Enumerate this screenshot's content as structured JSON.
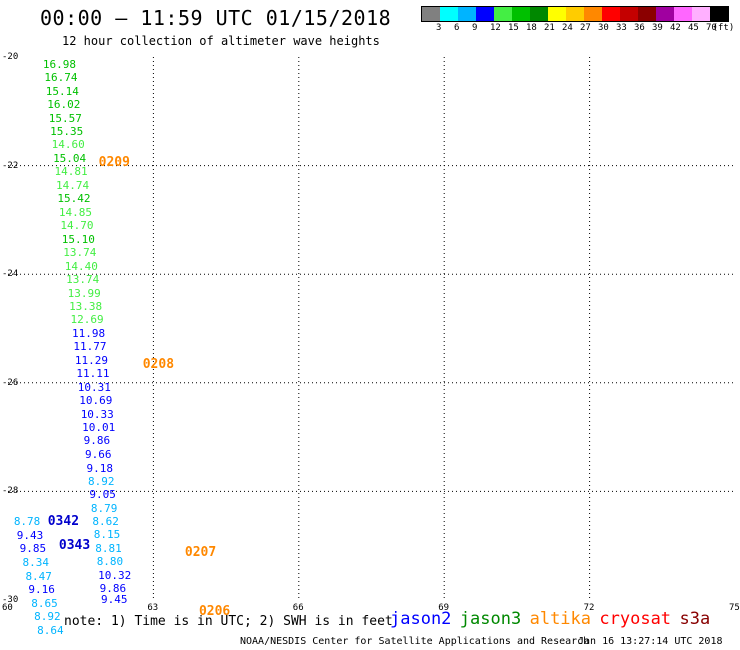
{
  "header": {
    "title": "00:00 – 11:59 UTC 01/15/2018",
    "subtitle": "12 hour collection of altimeter wave heights"
  },
  "legend": {
    "colors": [
      "#808080",
      "#00ffff",
      "#00b4ff",
      "#0000ff",
      "#44ee44",
      "#00c000",
      "#008800",
      "#ffff00",
      "#ffcc00",
      "#ff8800",
      "#ff0000",
      "#c40000",
      "#8b0000",
      "#a000a0",
      "#ff66ff",
      "#ffb0ff",
      "#000000"
    ],
    "labels": [
      "3",
      "6",
      "9",
      "12",
      "15",
      "18",
      "21",
      "24",
      "27",
      "30",
      "33",
      "36",
      "39",
      "42",
      "45",
      "70",
      "(ft)"
    ]
  },
  "axes": {
    "x_ticks": [
      "60",
      "63",
      "66",
      "69",
      "72",
      "75"
    ],
    "y_ticks": [
      "-20",
      "-22",
      "-24",
      "-26",
      "-28",
      "-30"
    ]
  },
  "map_data": {
    "lon_range": [
      60,
      75
    ],
    "lat_range": [
      -30,
      -20
    ],
    "points": [
      {
        "lon": 60.72,
        "lat": -20.13,
        "v": "16.98",
        "c": "#00c000"
      },
      {
        "lon": 60.75,
        "lat": -20.37,
        "v": "16.74",
        "c": "#00c000"
      },
      {
        "lon": 60.78,
        "lat": -20.62,
        "v": "15.14",
        "c": "#00c000"
      },
      {
        "lon": 60.81,
        "lat": -20.87,
        "v": "16.02",
        "c": "#00c000"
      },
      {
        "lon": 60.84,
        "lat": -21.12,
        "v": "15.57",
        "c": "#00c000"
      },
      {
        "lon": 60.87,
        "lat": -21.36,
        "v": "15.35",
        "c": "#00c000"
      },
      {
        "lon": 60.9,
        "lat": -21.61,
        "v": "14.60",
        "c": "#44ee44"
      },
      {
        "lon": 60.93,
        "lat": -21.86,
        "v": "15.04",
        "c": "#00c000"
      },
      {
        "lon": 60.96,
        "lat": -22.1,
        "v": "14.81",
        "c": "#44ee44"
      },
      {
        "lon": 60.99,
        "lat": -22.36,
        "v": "14.74",
        "c": "#44ee44"
      },
      {
        "lon": 61.02,
        "lat": -22.6,
        "v": "15.42",
        "c": "#00c000"
      },
      {
        "lon": 61.05,
        "lat": -22.86,
        "v": "14.85",
        "c": "#44ee44"
      },
      {
        "lon": 61.08,
        "lat": -23.1,
        "v": "14.70",
        "c": "#44ee44"
      },
      {
        "lon": 61.11,
        "lat": -23.35,
        "v": "15.10",
        "c": "#00c000"
      },
      {
        "lon": 61.14,
        "lat": -23.59,
        "v": "13.74",
        "c": "#44ee44"
      },
      {
        "lon": 61.17,
        "lat": -23.84,
        "v": "14.40",
        "c": "#44ee44"
      },
      {
        "lon": 61.2,
        "lat": -24.09,
        "v": "13.74",
        "c": "#44ee44"
      },
      {
        "lon": 61.23,
        "lat": -24.34,
        "v": "13.99",
        "c": "#44ee44"
      },
      {
        "lon": 61.26,
        "lat": -24.58,
        "v": "13.38",
        "c": "#44ee44"
      },
      {
        "lon": 61.29,
        "lat": -24.83,
        "v": "12.69",
        "c": "#44ee44"
      },
      {
        "lon": 61.32,
        "lat": -25.08,
        "v": "11.98",
        "c": "#0000ff"
      },
      {
        "lon": 61.35,
        "lat": -25.32,
        "v": "11.77",
        "c": "#0000ff"
      },
      {
        "lon": 61.38,
        "lat": -25.58,
        "v": "11.29",
        "c": "#0000ff"
      },
      {
        "lon": 61.41,
        "lat": -25.82,
        "v": "11.11",
        "c": "#0000ff"
      },
      {
        "lon": 61.44,
        "lat": -26.07,
        "v": "10.31",
        "c": "#0000ff"
      },
      {
        "lon": 61.47,
        "lat": -26.32,
        "v": "10.69",
        "c": "#0000ff"
      },
      {
        "lon": 61.5,
        "lat": -26.57,
        "v": "10.33",
        "c": "#0000ff"
      },
      {
        "lon": 61.53,
        "lat": -26.81,
        "v": "10.01",
        "c": "#0000ff"
      },
      {
        "lon": 61.56,
        "lat": -27.06,
        "v": "9.86",
        "c": "#0000ff"
      },
      {
        "lon": 61.59,
        "lat": -27.31,
        "v": "9.66",
        "c": "#0000ff"
      },
      {
        "lon": 61.62,
        "lat": -27.56,
        "v": "9.18",
        "c": "#0000ff"
      },
      {
        "lon": 61.65,
        "lat": -27.8,
        "v": "8.92",
        "c": "#00b4ff"
      },
      {
        "lon": 61.68,
        "lat": -28.05,
        "v": "9.05",
        "c": "#0000ff"
      },
      {
        "lon": 61.71,
        "lat": -28.3,
        "v": "8.79",
        "c": "#00b4ff"
      },
      {
        "lon": 61.74,
        "lat": -28.55,
        "v": "8.62",
        "c": "#00b4ff"
      },
      {
        "lon": 61.77,
        "lat": -28.79,
        "v": "8.15",
        "c": "#00b4ff"
      },
      {
        "lon": 61.8,
        "lat": -29.04,
        "v": "8.81",
        "c": "#00b4ff"
      },
      {
        "lon": 61.83,
        "lat": -29.29,
        "v": "8.80",
        "c": "#00b4ff"
      },
      {
        "lon": 61.86,
        "lat": -29.54,
        "v": "10.32",
        "c": "#0000ff"
      },
      {
        "lon": 61.89,
        "lat": -29.78,
        "v": "9.86",
        "c": "#0000ff"
      },
      {
        "lon": 61.92,
        "lat": -29.98,
        "v": "9.45",
        "c": "#0000ff"
      },
      {
        "lon": 60.12,
        "lat": -28.55,
        "v": "8.78",
        "c": "#00b4ff"
      },
      {
        "lon": 60.18,
        "lat": -28.8,
        "v": "9.43",
        "c": "#0000ff"
      },
      {
        "lon": 60.24,
        "lat": -29.05,
        "v": "9.85",
        "c": "#0000ff"
      },
      {
        "lon": 60.3,
        "lat": -29.3,
        "v": "8.34",
        "c": "#00b4ff"
      },
      {
        "lon": 60.36,
        "lat": -29.55,
        "v": "8.47",
        "c": "#00b4ff"
      },
      {
        "lon": 60.42,
        "lat": -29.8,
        "v": "9.16",
        "c": "#0000ff"
      },
      {
        "lon": 60.48,
        "lat": -30.05,
        "v": "8.65",
        "c": "#00b4ff"
      },
      {
        "lon": 60.54,
        "lat": -30.3,
        "v": "8.92",
        "c": "#00b4ff"
      },
      {
        "lon": 60.6,
        "lat": -30.55,
        "v": "8.64",
        "c": "#00b4ff"
      }
    ],
    "passes": [
      {
        "lon": 61.87,
        "lat": -21.93,
        "label": "0209",
        "c": "#ff8800"
      },
      {
        "lon": 62.78,
        "lat": -25.65,
        "label": "0208",
        "c": "#ff8800"
      },
      {
        "lon": 63.65,
        "lat": -29.12,
        "label": "0207",
        "c": "#ff8800"
      },
      {
        "lon": 63.94,
        "lat": -30.2,
        "label": "0206",
        "c": "#ff8800"
      },
      {
        "lon": 60.82,
        "lat": -28.55,
        "label": "0342",
        "c": "#0000cc"
      },
      {
        "lon": 61.05,
        "lat": -28.99,
        "label": "0343",
        "c": "#0000cc"
      }
    ]
  },
  "footer": {
    "note": "note:  1) Time is in UTC;  2) SWH is in feet",
    "satellites": [
      {
        "name": "jason2",
        "color": "#0000ff"
      },
      {
        "name": "jason3",
        "color": "#008800"
      },
      {
        "name": "altika",
        "color": "#ff8800"
      },
      {
        "name": "cryosat",
        "color": "#ff0000"
      },
      {
        "name": "s3a",
        "color": "#880000"
      }
    ],
    "credit": "NOAA/NESDIS Center for Satellite Applications and Research",
    "timestamp": "Jan 16 13:27:14 UTC 2018"
  }
}
